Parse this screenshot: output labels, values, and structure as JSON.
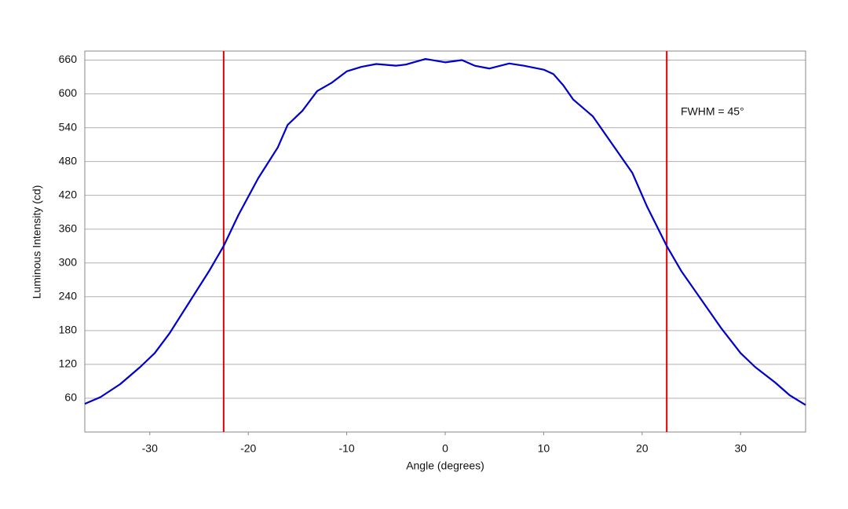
{
  "chart_data": {
    "type": "line",
    "x_label": "Angle (degrees)",
    "y_label": "Luminous Intensity (cd)",
    "annotation": "FWHM = 45°",
    "x": [
      -36.6,
      -35,
      -33,
      -31,
      -29.5,
      -28,
      -26,
      -24,
      -22.5,
      -21,
      -19,
      -17,
      -16,
      -14.5,
      -13,
      -11.5,
      -10,
      -8.5,
      -7,
      -5,
      -4,
      -2,
      0,
      1.7,
      3,
      4.5,
      6.5,
      8,
      10,
      11,
      12,
      13,
      15,
      17,
      19,
      20.5,
      22.5,
      24,
      26,
      28,
      30,
      31.5,
      33.5,
      35,
      36.6
    ],
    "series": [
      {
        "color": "#0000cc",
        "values": [
          50,
          62,
          85,
          115,
          140,
          175,
          230,
          285,
          330,
          385,
          450,
          505,
          545,
          570,
          605,
          620,
          640,
          648,
          653,
          650,
          652,
          662,
          656,
          660,
          650,
          645,
          654,
          650,
          643,
          635,
          615,
          590,
          560,
          510,
          460,
          400,
          330,
          285,
          235,
          185,
          140,
          115,
          88,
          65,
          48
        ]
      }
    ],
    "vlines": [
      -22.5,
      22.5
    ],
    "vline_color": "#e00000",
    "xlim": [
      -36.6,
      36.6
    ],
    "ylim": [
      0,
      676
    ],
    "xticks": [
      -30,
      -20,
      -10,
      0,
      10,
      20,
      30
    ],
    "yticks": [
      60,
      120,
      180,
      240,
      300,
      360,
      420,
      480,
      540,
      600,
      660
    ],
    "grid": true
  }
}
